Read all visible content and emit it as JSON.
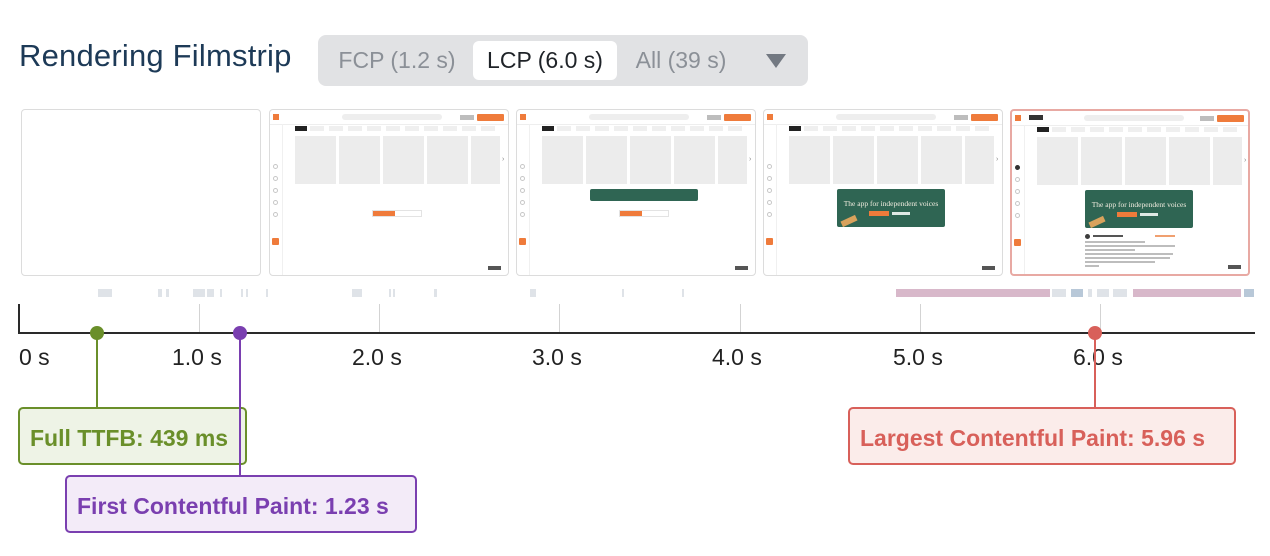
{
  "header": {
    "title": "Rendering Filmstrip",
    "tabs": [
      {
        "label": "FCP (1.2 s)",
        "active": false
      },
      {
        "label": "LCP (6.0 s)",
        "active": true
      },
      {
        "label": "All (39 s)",
        "active": false
      }
    ]
  },
  "filmstrip": {
    "banner_text": "The app for independent voices",
    "highlighted_frame": 5,
    "highlight_color": "#e8a9a3"
  },
  "timeline": {
    "axis_labels": [
      "0 s",
      "1.0 s",
      "2.0 s",
      "3.0 s",
      "4.0 s",
      "5.0 s",
      "6.0 s"
    ],
    "markers": [
      {
        "label": "Full TTFB: 439 ms",
        "time_s": 0.439,
        "color": "#6a8f2a",
        "bg": "#eef3e6"
      },
      {
        "label": "First Contentful Paint: 1.23 s",
        "time_s": 1.23,
        "color": "#7a3fb0",
        "bg": "#f3ebf8"
      },
      {
        "label": "Largest Contentful Paint: 5.96 s",
        "time_s": 5.96,
        "color": "#d8605a",
        "bg": "#fbecea"
      }
    ]
  },
  "colors": {
    "title": "#1d3a57",
    "accent_orange": "#ef7b3b",
    "banner_green": "#2f6553"
  }
}
